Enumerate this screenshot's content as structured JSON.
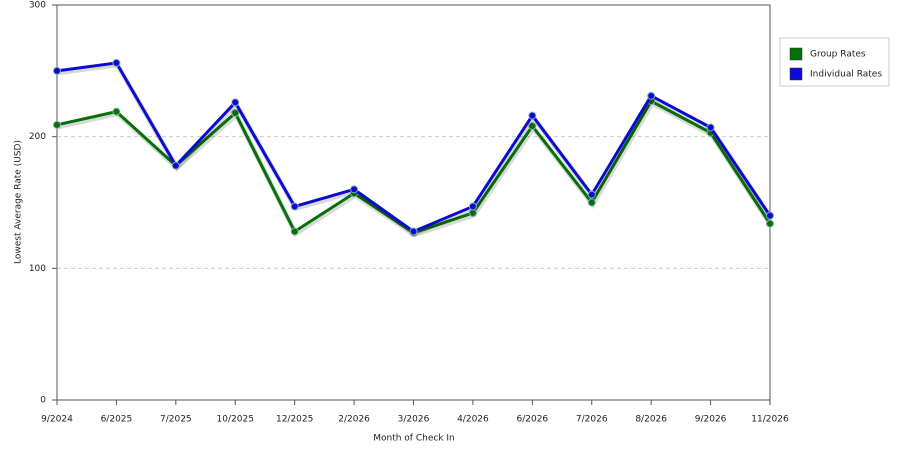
{
  "chart_data": {
    "type": "line",
    "x_label": "Month of Check In",
    "y_label": "Lowest Average Rate (USD)",
    "categories": [
      "9/2024",
      "6/2025",
      "7/2025",
      "10/2025",
      "12/2025",
      "2/2026",
      "3/2026",
      "4/2026",
      "6/2026",
      "7/2026",
      "8/2026",
      "9/2026",
      "11/2026"
    ],
    "series": [
      {
        "name": "Group Rates",
        "color": "#067006",
        "values": [
          209,
          219,
          178,
          218,
          128,
          157,
          127,
          142,
          208,
          150,
          227,
          203,
          134
        ]
      },
      {
        "name": "Individual Rates",
        "color": "#0a0ad2",
        "values": [
          250,
          256,
          178,
          226,
          147,
          160,
          128,
          147,
          216,
          156,
          231,
          207,
          140
        ]
      }
    ],
    "ylim": [
      0,
      300
    ],
    "yticks": [
      0,
      100,
      200,
      300
    ],
    "grid": true,
    "legend": "right"
  }
}
